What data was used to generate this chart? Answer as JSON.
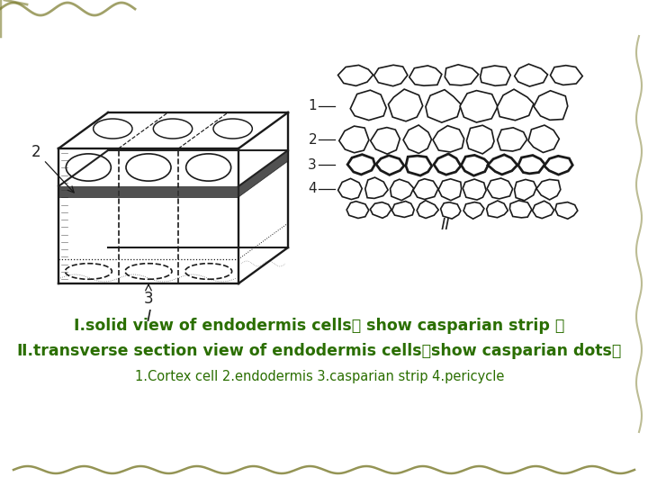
{
  "bg_color": "#ffffff",
  "title_line1": "Ⅰ.solid view of endodermis cells（ show casparian strip ）",
  "title_line2": "Ⅱ.transverse section view of endodermis cells（show casparian dots）",
  "title_line3": "1.Cortex cell 2.endodermis 3.casparian strip 4.pericycle",
  "text_color": "#2a6e00",
  "label_color": "#222222",
  "line_color": "#1a1a1a",
  "fig_width": 7.2,
  "fig_height": 5.4,
  "deco_color": "#7a7a2a"
}
